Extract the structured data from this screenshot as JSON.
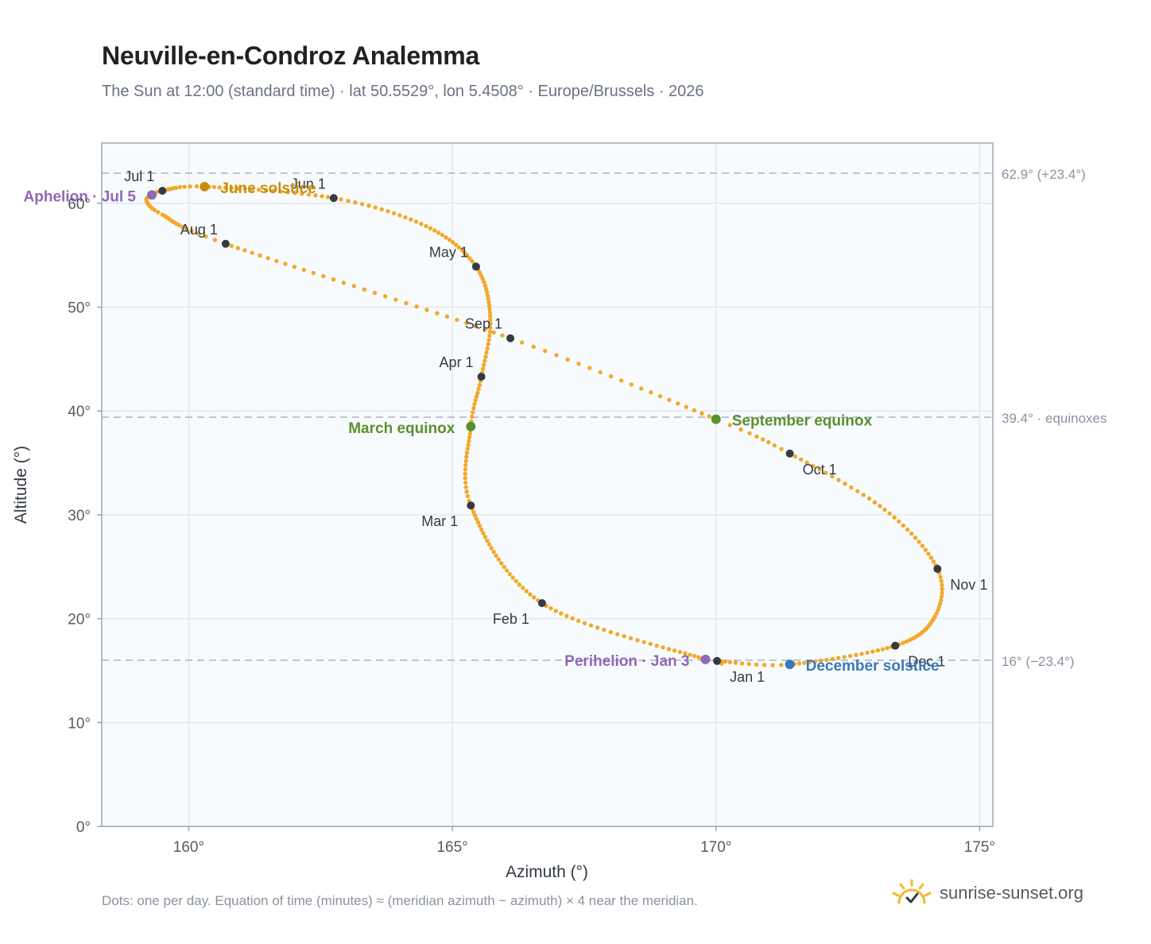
{
  "header": {
    "title": "Neuville-en-Condroz Analemma",
    "subtitle": "The Sun at 12:00 (standard time) · lat 50.5529°, lon 5.4508° · Europe/Brussels · 2026"
  },
  "footer": {
    "note": "Dots: one per day. Equation of time (minutes) ≈ (meridian azimuth − azimuth) × 4 near the meridian.",
    "brand": "sunrise-sunset.org"
  },
  "colors": {
    "curve": "#f2a92c",
    "month_marker": "#333a44",
    "solstice_june": "#c8900a",
    "solstice_december": "#3b78b8",
    "equinox": "#5a8f2e",
    "apsis": "#8f68b8",
    "plot_bg": "#f8fbfd",
    "grid": "#e3e8ee",
    "frame": "#9ca7b4",
    "ref_line": "#aab3bf"
  },
  "chart_data": {
    "type": "scatter",
    "xlabel": "Azimuth (°)",
    "ylabel": "Altitude (°)",
    "xlim": [
      158.35,
      175.25
    ],
    "ylim": [
      0,
      65.8
    ],
    "x_ticks": [
      160,
      165,
      170,
      175
    ],
    "x_tick_labels": [
      "160°",
      "165°",
      "170°",
      "175°"
    ],
    "y_ticks": [
      0,
      10,
      20,
      30,
      40,
      50,
      60
    ],
    "y_tick_labels": [
      "0°",
      "10°",
      "20°",
      "30°",
      "40°",
      "50°",
      "60°"
    ],
    "grid": true,
    "curve_anchors_by_day": [
      {
        "day": 1,
        "az": 170.02,
        "alt": 15.93
      },
      {
        "day": 3,
        "az": 169.8,
        "alt": 16.08
      },
      {
        "day": 32,
        "az": 166.7,
        "alt": 21.5
      },
      {
        "day": 60,
        "az": 165.35,
        "alt": 30.9
      },
      {
        "day": 79,
        "az": 165.35,
        "alt": 38.5
      },
      {
        "day": 91,
        "az": 165.55,
        "alt": 43.3
      },
      {
        "day": 105,
        "az": 165.72,
        "alt": 48.8
      },
      {
        "day": 121,
        "az": 165.45,
        "alt": 53.9
      },
      {
        "day": 137,
        "az": 164.5,
        "alt": 57.8
      },
      {
        "day": 152,
        "az": 162.75,
        "alt": 60.5
      },
      {
        "day": 172,
        "az": 160.3,
        "alt": 61.6
      },
      {
        "day": 182,
        "az": 159.5,
        "alt": 61.2
      },
      {
        "day": 186,
        "az": 159.3,
        "alt": 60.8
      },
      {
        "day": 190,
        "az": 159.2,
        "alt": 60.2
      },
      {
        "day": 198,
        "az": 159.5,
        "alt": 58.9
      },
      {
        "day": 213,
        "az": 160.7,
        "alt": 56.1
      },
      {
        "day": 244,
        "az": 166.1,
        "alt": 47.0
      },
      {
        "day": 265,
        "az": 170.0,
        "alt": 39.2
      },
      {
        "day": 274,
        "az": 171.4,
        "alt": 35.9
      },
      {
        "day": 290,
        "az": 173.2,
        "alt": 30.5
      },
      {
        "day": 305,
        "az": 174.2,
        "alt": 24.8
      },
      {
        "day": 318,
        "az": 174.15,
        "alt": 20.2
      },
      {
        "day": 335,
        "az": 173.4,
        "alt": 17.4
      },
      {
        "day": 355,
        "az": 171.4,
        "alt": 15.6
      },
      {
        "day": 365,
        "az": 170.1,
        "alt": 15.9
      }
    ],
    "month_markers": [
      {
        "label": "Jan 1",
        "az": 170.02,
        "alt": 15.93,
        "label_pos": "below-right"
      },
      {
        "label": "Feb 1",
        "az": 166.7,
        "alt": 21.5,
        "label_pos": "below-left"
      },
      {
        "label": "Mar 1",
        "az": 165.35,
        "alt": 30.9,
        "label_pos": "below-left"
      },
      {
        "label": "Apr 1",
        "az": 165.55,
        "alt": 43.3,
        "label_pos": "above-left"
      },
      {
        "label": "May 1",
        "az": 165.45,
        "alt": 53.9,
        "label_pos": "above-left"
      },
      {
        "label": "Jun 1",
        "az": 162.75,
        "alt": 60.5,
        "label_pos": "above-left"
      },
      {
        "label": "Jul 1",
        "az": 159.5,
        "alt": 61.2,
        "label_pos": "above-left"
      },
      {
        "label": "Aug 1",
        "az": 160.7,
        "alt": 56.1,
        "label_pos": "above-left"
      },
      {
        "label": "Sep 1",
        "az": 166.1,
        "alt": 47.0,
        "label_pos": "above-left"
      },
      {
        "label": "Oct 1",
        "az": 171.4,
        "alt": 35.9,
        "label_pos": "below-right"
      },
      {
        "label": "Nov 1",
        "az": 174.2,
        "alt": 24.8,
        "label_pos": "below-right"
      },
      {
        "label": "Dec 1",
        "az": 173.4,
        "alt": 17.4,
        "label_pos": "below-right"
      }
    ],
    "events": [
      {
        "label": "June solstice",
        "az": 160.3,
        "alt": 61.6,
        "color_key": "solstice_june",
        "label_side": "right"
      },
      {
        "label": "December solstice",
        "az": 171.4,
        "alt": 15.6,
        "color_key": "solstice_december",
        "label_side": "right"
      },
      {
        "label": "March equinox",
        "az": 165.35,
        "alt": 38.5,
        "color_key": "equinox",
        "label_side": "left"
      },
      {
        "label": "September equinox",
        "az": 170.0,
        "alt": 39.2,
        "color_key": "equinox",
        "label_side": "right"
      },
      {
        "label": "Aphelion · Jul 5",
        "az": 159.3,
        "alt": 60.8,
        "color_key": "apsis",
        "label_side": "left"
      },
      {
        "label": "Perihelion · Jan 3",
        "az": 169.8,
        "alt": 16.08,
        "color_key": "apsis",
        "label_side": "left"
      }
    ],
    "reference_lines": [
      {
        "alt": 62.9,
        "label": "62.9° (+23.4°)"
      },
      {
        "alt": 39.4,
        "label": "39.4° · equinoxes"
      },
      {
        "alt": 16.0,
        "label": "16° (−23.4°)"
      }
    ]
  }
}
